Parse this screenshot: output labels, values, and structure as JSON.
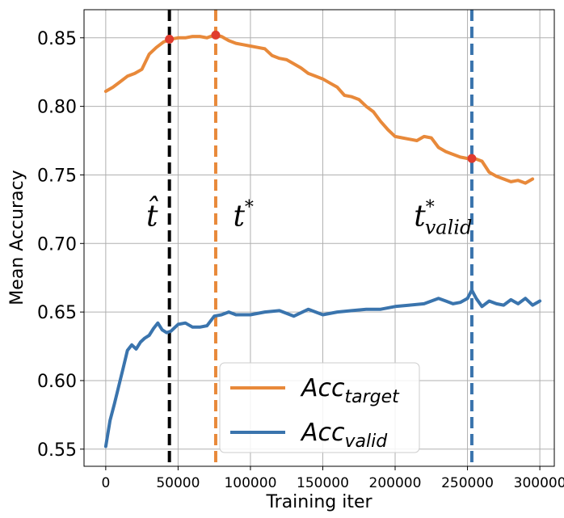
{
  "chart_data": {
    "type": "line",
    "xlabel": "Training iter",
    "ylabel": "Mean Accuracy",
    "xlim": [
      -15000,
      310000
    ],
    "ylim": [
      0.5375,
      0.8705
    ],
    "x_ticks": [
      0,
      50000,
      100000,
      150000,
      200000,
      250000,
      300000
    ],
    "y_ticks": [
      0.55,
      0.6,
      0.65,
      0.7,
      0.75,
      0.8,
      0.85
    ],
    "grid": true,
    "legend_position": "bottom-center",
    "series": [
      {
        "key": "target",
        "name_main": "Acc",
        "name_sub": "target",
        "color": "#e8893a",
        "x": [
          0,
          5000,
          10000,
          15000,
          20000,
          25000,
          30000,
          35000,
          40000,
          45000,
          50000,
          55000,
          60000,
          65000,
          70000,
          75000,
          80000,
          85000,
          90000,
          95000,
          100000,
          105000,
          110000,
          115000,
          120000,
          125000,
          130000,
          135000,
          140000,
          145000,
          150000,
          155000,
          160000,
          165000,
          170000,
          175000,
          180000,
          185000,
          190000,
          195000,
          200000,
          205000,
          210000,
          215000,
          220000,
          225000,
          230000,
          235000,
          240000,
          245000,
          250000,
          255000,
          260000,
          265000,
          270000,
          275000,
          280000,
          285000,
          290000,
          295000
        ],
        "values": [
          0.811,
          0.814,
          0.818,
          0.822,
          0.824,
          0.827,
          0.838,
          0.843,
          0.847,
          0.849,
          0.85,
          0.85,
          0.851,
          0.851,
          0.85,
          0.852,
          0.851,
          0.848,
          0.846,
          0.845,
          0.844,
          0.843,
          0.842,
          0.837,
          0.835,
          0.834,
          0.831,
          0.828,
          0.824,
          0.822,
          0.82,
          0.817,
          0.814,
          0.808,
          0.807,
          0.805,
          0.8,
          0.796,
          0.789,
          0.783,
          0.778,
          0.777,
          0.776,
          0.775,
          0.778,
          0.777,
          0.77,
          0.767,
          0.765,
          0.763,
          0.762,
          0.762,
          0.76,
          0.752,
          0.749,
          0.747,
          0.745,
          0.746,
          0.744,
          0.747
        ]
      },
      {
        "key": "valid",
        "name_main": "Acc",
        "name_sub": "valid",
        "color": "#3a74ad",
        "x": [
          0,
          3000,
          6000,
          9000,
          12000,
          15000,
          18000,
          21000,
          24000,
          27000,
          30000,
          33000,
          36000,
          39000,
          42000,
          45000,
          50000,
          55000,
          60000,
          65000,
          70000,
          75000,
          80000,
          85000,
          90000,
          100000,
          110000,
          120000,
          130000,
          140000,
          150000,
          160000,
          170000,
          180000,
          190000,
          200000,
          210000,
          220000,
          230000,
          235000,
          240000,
          245000,
          250000,
          253000,
          256000,
          260000,
          265000,
          270000,
          275000,
          280000,
          285000,
          290000,
          295000,
          300000
        ],
        "values": [
          0.552,
          0.571,
          0.583,
          0.596,
          0.609,
          0.622,
          0.626,
          0.623,
          0.628,
          0.631,
          0.633,
          0.638,
          0.642,
          0.637,
          0.635,
          0.636,
          0.641,
          0.642,
          0.639,
          0.639,
          0.64,
          0.647,
          0.648,
          0.65,
          0.648,
          0.648,
          0.65,
          0.651,
          0.647,
          0.652,
          0.648,
          0.65,
          0.651,
          0.652,
          0.652,
          0.654,
          0.655,
          0.656,
          0.66,
          0.658,
          0.656,
          0.657,
          0.66,
          0.666,
          0.66,
          0.654,
          0.658,
          0.656,
          0.655,
          0.659,
          0.656,
          0.66,
          0.655,
          0.658
        ]
      }
    ],
    "vlines": [
      {
        "x": 44000,
        "color": "#000000",
        "label_main": "t̂",
        "label_sub": "",
        "label_sup": "",
        "label_x": 28000,
        "label_y": 0.72
      },
      {
        "x": 76000,
        "color": "#e8893a",
        "label_main": "t",
        "label_sub": "",
        "label_sup": "*",
        "label_x": 88000,
        "label_y": 0.72
      },
      {
        "x": 253000,
        "color": "#3a74ad",
        "label_main": "t",
        "label_sub": "valid",
        "label_sup": "*",
        "label_x": 213000,
        "label_y": 0.72
      }
    ],
    "markers": [
      {
        "x": 44000,
        "y": 0.849,
        "color": "#e03c2f"
      },
      {
        "x": 76000,
        "y": 0.852,
        "color": "#e03c2f"
      },
      {
        "x": 253000,
        "y": 0.762,
        "color": "#e03c2f"
      }
    ]
  }
}
